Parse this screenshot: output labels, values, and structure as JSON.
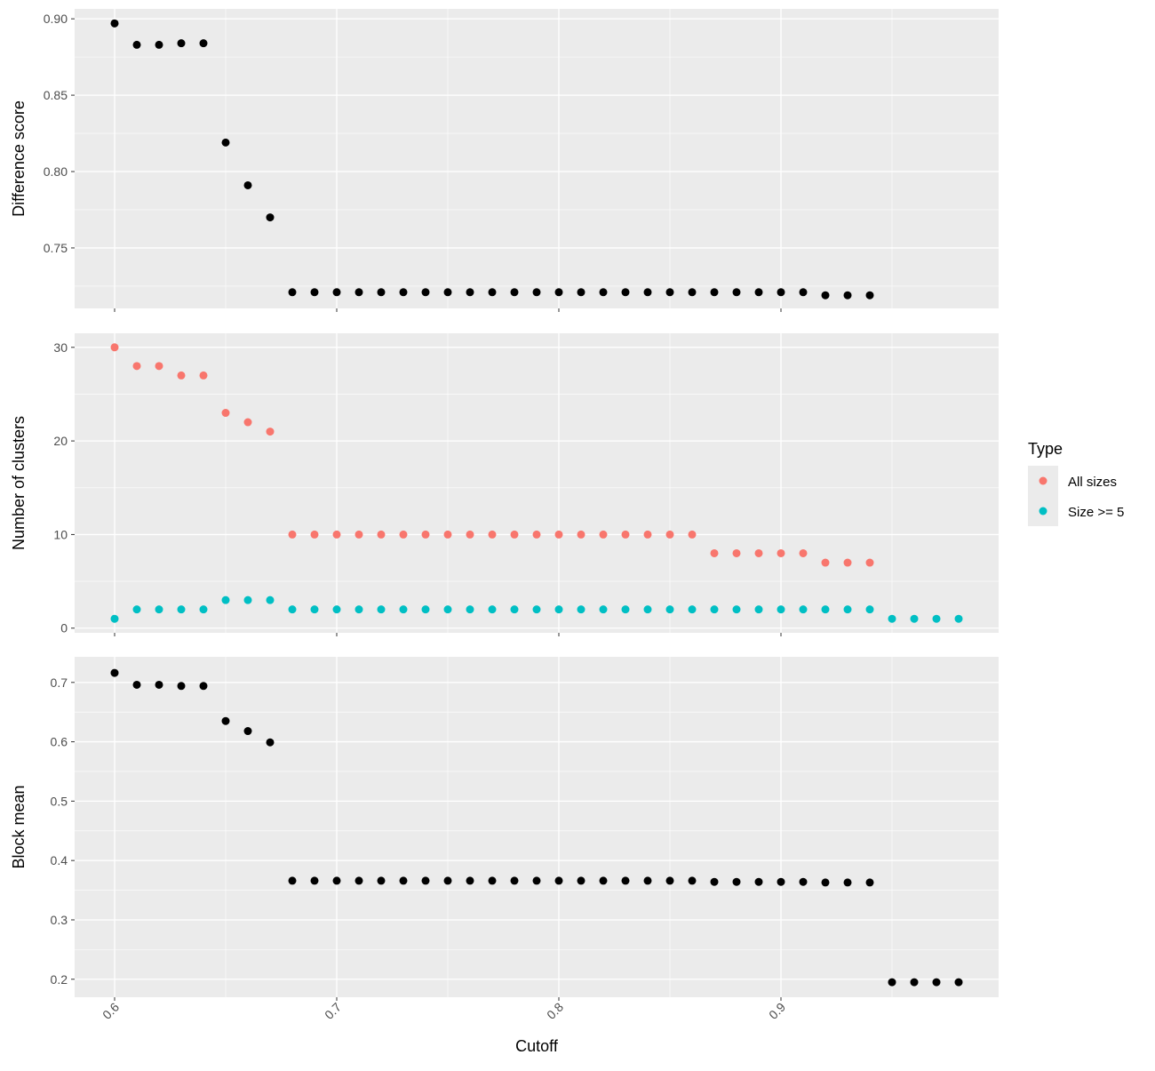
{
  "chart_data": {
    "type": "scatter",
    "x_axis": {
      "label": "Cutoff",
      "ticks": [
        0.6,
        0.7,
        0.8,
        0.9
      ],
      "tick_labels": [
        "0.6",
        "0.7",
        "0.8",
        "0.9"
      ],
      "range": [
        0.582,
        0.998
      ],
      "tick_rotation": "45 degrees"
    },
    "legend": {
      "title": "Type",
      "position": "right",
      "entries": [
        {
          "label": "All sizes",
          "color": "#F8766D"
        },
        {
          "label": "Size >= 5",
          "color": "#00BFC4"
        }
      ]
    },
    "panels": [
      {
        "ylabel": "Difference score",
        "ylim": [
          0.7104,
          0.9065
        ],
        "yticks": [
          0.75,
          0.8,
          0.85,
          0.9
        ],
        "ytick_labels": [
          "0.75",
          "0.80",
          "0.85",
          "0.90"
        ],
        "grid": true,
        "series": [
          {
            "color": "#000000",
            "x": [
              0.6,
              0.61,
              0.62,
              0.63,
              0.64,
              0.65,
              0.66,
              0.67,
              0.68,
              0.69,
              0.7,
              0.71,
              0.72,
              0.73,
              0.74,
              0.75,
              0.76,
              0.77,
              0.78,
              0.79,
              0.8,
              0.81,
              0.82,
              0.83,
              0.84,
              0.85,
              0.86,
              0.87,
              0.88,
              0.89,
              0.9,
              0.91,
              0.92,
              0.93,
              0.94
            ],
            "y": [
              0.897,
              0.883,
              0.883,
              0.884,
              0.884,
              0.819,
              0.791,
              0.77,
              0.721,
              0.721,
              0.721,
              0.721,
              0.721,
              0.721,
              0.721,
              0.721,
              0.721,
              0.721,
              0.721,
              0.721,
              0.721,
              0.721,
              0.721,
              0.721,
              0.721,
              0.721,
              0.721,
              0.721,
              0.721,
              0.721,
              0.721,
              0.721,
              0.719,
              0.719,
              0.719
            ]
          }
        ]
      },
      {
        "ylabel": "Number of clusters",
        "ylim": [
          -0.5,
          31.5
        ],
        "yticks": [
          0,
          10,
          20,
          30
        ],
        "ytick_labels": [
          "0",
          "10",
          "20",
          "30"
        ],
        "grid": true,
        "series": [
          {
            "name": "All sizes",
            "color": "#F8766D",
            "x": [
              0.6,
              0.61,
              0.62,
              0.63,
              0.64,
              0.65,
              0.66,
              0.67,
              0.68,
              0.69,
              0.7,
              0.71,
              0.72,
              0.73,
              0.74,
              0.75,
              0.76,
              0.77,
              0.78,
              0.79,
              0.8,
              0.81,
              0.82,
              0.83,
              0.84,
              0.85,
              0.86,
              0.87,
              0.88,
              0.89,
              0.9,
              0.91,
              0.92,
              0.93,
              0.94
            ],
            "y": [
              30,
              28,
              28,
              27,
              27,
              23,
              22,
              21,
              10,
              10,
              10,
              10,
              10,
              10,
              10,
              10,
              10,
              10,
              10,
              10,
              10,
              10,
              10,
              10,
              10,
              10,
              10,
              8,
              8,
              8,
              8,
              8,
              7,
              7,
              7
            ]
          },
          {
            "name": "Size >= 5",
            "color": "#00BFC4",
            "x": [
              0.6,
              0.61,
              0.62,
              0.63,
              0.64,
              0.65,
              0.66,
              0.67,
              0.68,
              0.69,
              0.7,
              0.71,
              0.72,
              0.73,
              0.74,
              0.75,
              0.76,
              0.77,
              0.78,
              0.79,
              0.8,
              0.81,
              0.82,
              0.83,
              0.84,
              0.85,
              0.86,
              0.87,
              0.88,
              0.89,
              0.9,
              0.91,
              0.92,
              0.93,
              0.94,
              0.95,
              0.96,
              0.97,
              0.98
            ],
            "y": [
              1,
              2,
              2,
              2,
              2,
              3,
              3,
              3,
              2,
              2,
              2,
              2,
              2,
              2,
              2,
              2,
              2,
              2,
              2,
              2,
              2,
              2,
              2,
              2,
              2,
              2,
              2,
              2,
              2,
              2,
              2,
              2,
              2,
              2,
              2,
              1,
              1,
              1,
              1
            ]
          }
        ]
      },
      {
        "ylabel": "Block mean",
        "ylim": [
          0.1697,
          0.7431
        ],
        "yticks": [
          0.2,
          0.3,
          0.4,
          0.5,
          0.6,
          0.7
        ],
        "ytick_labels": [
          "0.2",
          "0.3",
          "0.4",
          "0.5",
          "0.6",
          "0.7"
        ],
        "grid": true,
        "series": [
          {
            "color": "#000000",
            "x": [
              0.6,
              0.61,
              0.62,
              0.63,
              0.64,
              0.65,
              0.66,
              0.67,
              0.68,
              0.69,
              0.7,
              0.71,
              0.72,
              0.73,
              0.74,
              0.75,
              0.76,
              0.77,
              0.78,
              0.79,
              0.8,
              0.81,
              0.82,
              0.83,
              0.84,
              0.85,
              0.86,
              0.87,
              0.88,
              0.89,
              0.9,
              0.91,
              0.92,
              0.93,
              0.94,
              0.95,
              0.96,
              0.97,
              0.98
            ],
            "y": [
              0.716,
              0.696,
              0.696,
              0.694,
              0.694,
              0.635,
              0.618,
              0.599,
              0.366,
              0.366,
              0.366,
              0.366,
              0.366,
              0.366,
              0.366,
              0.366,
              0.366,
              0.366,
              0.366,
              0.366,
              0.366,
              0.366,
              0.366,
              0.366,
              0.366,
              0.366,
              0.366,
              0.364,
              0.364,
              0.364,
              0.364,
              0.364,
              0.363,
              0.363,
              0.363,
              0.195,
              0.195,
              0.195,
              0.195
            ]
          }
        ]
      }
    ]
  }
}
